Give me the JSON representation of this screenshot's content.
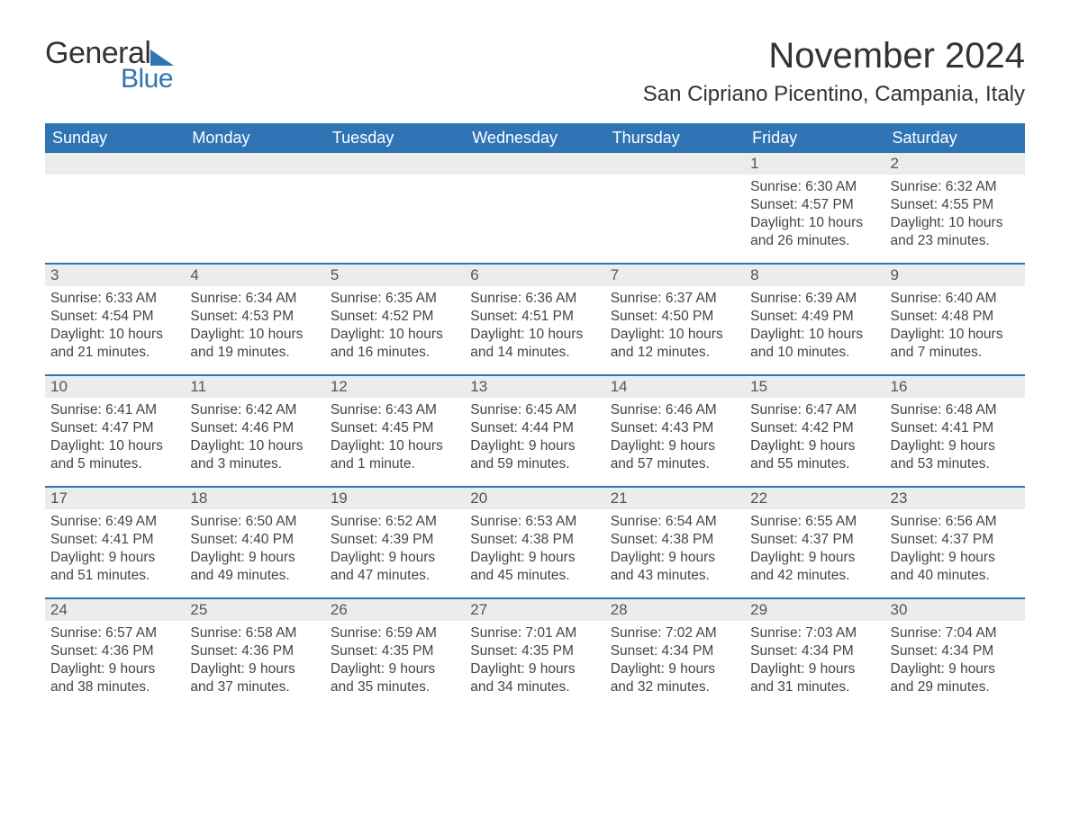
{
  "logo": {
    "text_general": "General",
    "text_blue": "Blue"
  },
  "colors": {
    "brand_blue": "#2f75b5",
    "header_bg": "#2f75b5",
    "header_text": "#ffffff",
    "daynum_bg": "#ececec",
    "text": "#333333",
    "body_text": "#444444",
    "page_bg": "#ffffff"
  },
  "fonts": {
    "family": "Arial",
    "month_title_size_pt": 30,
    "location_size_pt": 18,
    "weekday_size_pt": 14,
    "daynum_size_pt": 13,
    "body_size_pt": 12
  },
  "title": "November 2024",
  "location": "San Cipriano Picentino, Campania, Italy",
  "weekdays": [
    "Sunday",
    "Monday",
    "Tuesday",
    "Wednesday",
    "Thursday",
    "Friday",
    "Saturday"
  ],
  "weeks": [
    [
      {
        "day": "",
        "sunrise": "",
        "sunset": "",
        "daylight": ""
      },
      {
        "day": "",
        "sunrise": "",
        "sunset": "",
        "daylight": ""
      },
      {
        "day": "",
        "sunrise": "",
        "sunset": "",
        "daylight": ""
      },
      {
        "day": "",
        "sunrise": "",
        "sunset": "",
        "daylight": ""
      },
      {
        "day": "",
        "sunrise": "",
        "sunset": "",
        "daylight": ""
      },
      {
        "day": "1",
        "sunrise": "Sunrise: 6:30 AM",
        "sunset": "Sunset: 4:57 PM",
        "daylight": "Daylight: 10 hours and 26 minutes."
      },
      {
        "day": "2",
        "sunrise": "Sunrise: 6:32 AM",
        "sunset": "Sunset: 4:55 PM",
        "daylight": "Daylight: 10 hours and 23 minutes."
      }
    ],
    [
      {
        "day": "3",
        "sunrise": "Sunrise: 6:33 AM",
        "sunset": "Sunset: 4:54 PM",
        "daylight": "Daylight: 10 hours and 21 minutes."
      },
      {
        "day": "4",
        "sunrise": "Sunrise: 6:34 AM",
        "sunset": "Sunset: 4:53 PM",
        "daylight": "Daylight: 10 hours and 19 minutes."
      },
      {
        "day": "5",
        "sunrise": "Sunrise: 6:35 AM",
        "sunset": "Sunset: 4:52 PM",
        "daylight": "Daylight: 10 hours and 16 minutes."
      },
      {
        "day": "6",
        "sunrise": "Sunrise: 6:36 AM",
        "sunset": "Sunset: 4:51 PM",
        "daylight": "Daylight: 10 hours and 14 minutes."
      },
      {
        "day": "7",
        "sunrise": "Sunrise: 6:37 AM",
        "sunset": "Sunset: 4:50 PM",
        "daylight": "Daylight: 10 hours and 12 minutes."
      },
      {
        "day": "8",
        "sunrise": "Sunrise: 6:39 AM",
        "sunset": "Sunset: 4:49 PM",
        "daylight": "Daylight: 10 hours and 10 minutes."
      },
      {
        "day": "9",
        "sunrise": "Sunrise: 6:40 AM",
        "sunset": "Sunset: 4:48 PM",
        "daylight": "Daylight: 10 hours and 7 minutes."
      }
    ],
    [
      {
        "day": "10",
        "sunrise": "Sunrise: 6:41 AM",
        "sunset": "Sunset: 4:47 PM",
        "daylight": "Daylight: 10 hours and 5 minutes."
      },
      {
        "day": "11",
        "sunrise": "Sunrise: 6:42 AM",
        "sunset": "Sunset: 4:46 PM",
        "daylight": "Daylight: 10 hours and 3 minutes."
      },
      {
        "day": "12",
        "sunrise": "Sunrise: 6:43 AM",
        "sunset": "Sunset: 4:45 PM",
        "daylight": "Daylight: 10 hours and 1 minute."
      },
      {
        "day": "13",
        "sunrise": "Sunrise: 6:45 AM",
        "sunset": "Sunset: 4:44 PM",
        "daylight": "Daylight: 9 hours and 59 minutes."
      },
      {
        "day": "14",
        "sunrise": "Sunrise: 6:46 AM",
        "sunset": "Sunset: 4:43 PM",
        "daylight": "Daylight: 9 hours and 57 minutes."
      },
      {
        "day": "15",
        "sunrise": "Sunrise: 6:47 AM",
        "sunset": "Sunset: 4:42 PM",
        "daylight": "Daylight: 9 hours and 55 minutes."
      },
      {
        "day": "16",
        "sunrise": "Sunrise: 6:48 AM",
        "sunset": "Sunset: 4:41 PM",
        "daylight": "Daylight: 9 hours and 53 minutes."
      }
    ],
    [
      {
        "day": "17",
        "sunrise": "Sunrise: 6:49 AM",
        "sunset": "Sunset: 4:41 PM",
        "daylight": "Daylight: 9 hours and 51 minutes."
      },
      {
        "day": "18",
        "sunrise": "Sunrise: 6:50 AM",
        "sunset": "Sunset: 4:40 PM",
        "daylight": "Daylight: 9 hours and 49 minutes."
      },
      {
        "day": "19",
        "sunrise": "Sunrise: 6:52 AM",
        "sunset": "Sunset: 4:39 PM",
        "daylight": "Daylight: 9 hours and 47 minutes."
      },
      {
        "day": "20",
        "sunrise": "Sunrise: 6:53 AM",
        "sunset": "Sunset: 4:38 PM",
        "daylight": "Daylight: 9 hours and 45 minutes."
      },
      {
        "day": "21",
        "sunrise": "Sunrise: 6:54 AM",
        "sunset": "Sunset: 4:38 PM",
        "daylight": "Daylight: 9 hours and 43 minutes."
      },
      {
        "day": "22",
        "sunrise": "Sunrise: 6:55 AM",
        "sunset": "Sunset: 4:37 PM",
        "daylight": "Daylight: 9 hours and 42 minutes."
      },
      {
        "day": "23",
        "sunrise": "Sunrise: 6:56 AM",
        "sunset": "Sunset: 4:37 PM",
        "daylight": "Daylight: 9 hours and 40 minutes."
      }
    ],
    [
      {
        "day": "24",
        "sunrise": "Sunrise: 6:57 AM",
        "sunset": "Sunset: 4:36 PM",
        "daylight": "Daylight: 9 hours and 38 minutes."
      },
      {
        "day": "25",
        "sunrise": "Sunrise: 6:58 AM",
        "sunset": "Sunset: 4:36 PM",
        "daylight": "Daylight: 9 hours and 37 minutes."
      },
      {
        "day": "26",
        "sunrise": "Sunrise: 6:59 AM",
        "sunset": "Sunset: 4:35 PM",
        "daylight": "Daylight: 9 hours and 35 minutes."
      },
      {
        "day": "27",
        "sunrise": "Sunrise: 7:01 AM",
        "sunset": "Sunset: 4:35 PM",
        "daylight": "Daylight: 9 hours and 34 minutes."
      },
      {
        "day": "28",
        "sunrise": "Sunrise: 7:02 AM",
        "sunset": "Sunset: 4:34 PM",
        "daylight": "Daylight: 9 hours and 32 minutes."
      },
      {
        "day": "29",
        "sunrise": "Sunrise: 7:03 AM",
        "sunset": "Sunset: 4:34 PM",
        "daylight": "Daylight: 9 hours and 31 minutes."
      },
      {
        "day": "30",
        "sunrise": "Sunrise: 7:04 AM",
        "sunset": "Sunset: 4:34 PM",
        "daylight": "Daylight: 9 hours and 29 minutes."
      }
    ]
  ]
}
